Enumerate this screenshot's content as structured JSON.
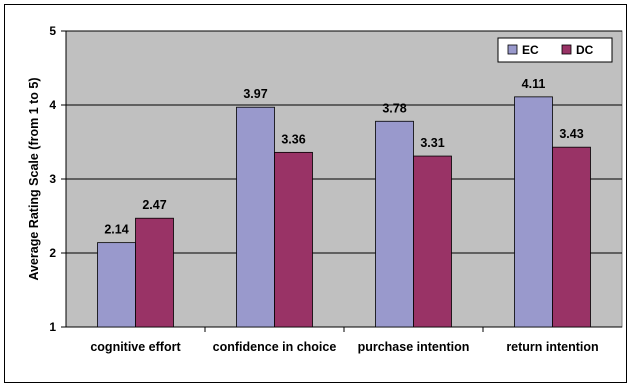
{
  "chart_data": {
    "type": "bar",
    "categories": [
      "cognitive effort",
      "confidence in choice",
      "purchase intention",
      "return intention"
    ],
    "series": [
      {
        "name": "EC",
        "values": [
          2.14,
          3.97,
          3.78,
          4.11
        ],
        "color": "#9999CC"
      },
      {
        "name": "DC",
        "values": [
          2.47,
          3.36,
          3.31,
          3.43
        ],
        "color": "#993366"
      }
    ],
    "title": "",
    "xlabel": "",
    "ylabel": "Average Rating Scale (from 1 to 5)",
    "ylim": [
      1,
      5
    ],
    "yticks": [
      1,
      2,
      3,
      4,
      5
    ],
    "grid": true,
    "legend_position": "top-right",
    "plot_background": "#C0C0C0"
  }
}
